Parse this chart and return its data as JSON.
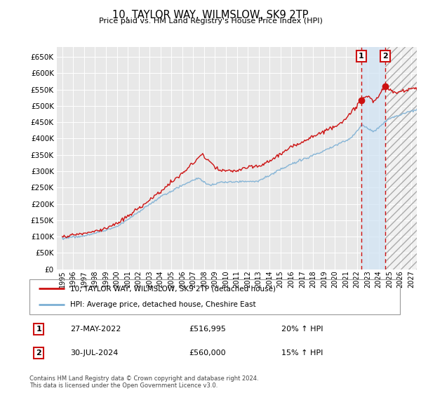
{
  "title": "10, TAYLOR WAY, WILMSLOW, SK9 2TP",
  "subtitle": "Price paid vs. HM Land Registry's House Price Index (HPI)",
  "ylim": [
    0,
    680000
  ],
  "yticks": [
    0,
    50000,
    100000,
    150000,
    200000,
    250000,
    300000,
    350000,
    400000,
    450000,
    500000,
    550000,
    600000,
    650000
  ],
  "xlim_start": 1994.5,
  "xlim_end": 2027.5,
  "xticks": [
    1995,
    1996,
    1997,
    1998,
    1999,
    2000,
    2001,
    2002,
    2003,
    2004,
    2005,
    2006,
    2007,
    2008,
    2009,
    2010,
    2011,
    2012,
    2013,
    2014,
    2015,
    2016,
    2017,
    2018,
    2019,
    2020,
    2021,
    2022,
    2023,
    2024,
    2025,
    2026,
    2027
  ],
  "hpi_color": "#7bafd4",
  "price_color": "#cc1111",
  "sale1_x": 2022.41,
  "sale1_y": 516995,
  "sale2_x": 2024.58,
  "sale2_y": 560000,
  "sale1_label": "27-MAY-2022",
  "sale1_price": "£516,995",
  "sale1_hpi": "20% ↑ HPI",
  "sale2_label": "30-JUL-2024",
  "sale2_price": "£560,000",
  "sale2_hpi": "15% ↑ HPI",
  "legend1": "10, TAYLOR WAY, WILMSLOW, SK9 2TP (detached house)",
  "legend2": "HPI: Average price, detached house, Cheshire East",
  "footnote": "Contains HM Land Registry data © Crown copyright and database right 2024.\nThis data is licensed under the Open Government Licence v3.0.",
  "plot_bg_color": "#e8e8e8",
  "hatch_color": "#c8c8c8",
  "shade_color": "#d0e4f5"
}
